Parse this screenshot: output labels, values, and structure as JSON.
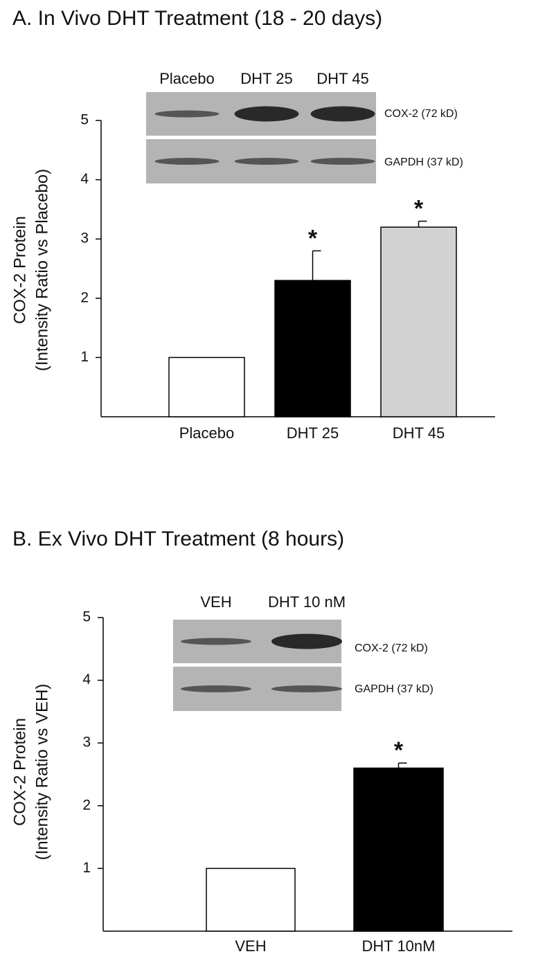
{
  "chart_data": [
    {
      "type": "bar",
      "title": "A. In Vivo DHT Treatment (18 - 20 days)",
      "y_label": [
        "COX-2 Protein",
        "(Intensity Ratio vs Placebo)"
      ],
      "categories": [
        "Placebo",
        "DHT 25",
        "DHT 45"
      ],
      "values": [
        1,
        2.3,
        3.2
      ],
      "errors": [
        null,
        0.5,
        0.1
      ],
      "colors": [
        "#ffffff",
        "#000000",
        "#d3d3d3"
      ],
      "annotations": [
        null,
        "*",
        "*"
      ],
      "ylim": [
        0,
        5
      ],
      "yticks": [
        1,
        2,
        3,
        4,
        5
      ],
      "blot": {
        "lanes": [
          "Placebo",
          "DHT 25",
          "DHT 45"
        ],
        "bands": [
          "COX-2 (72 kD)",
          "GAPDH (37 kD)"
        ]
      }
    },
    {
      "type": "bar",
      "title": "B. Ex Vivo DHT Treatment (8 hours)",
      "y_label": [
        "COX-2 Protein",
        "(Intensity Ratio vs VEH)"
      ],
      "categories": [
        "VEH",
        "DHT 10nM"
      ],
      "values": [
        1,
        2.6
      ],
      "errors": [
        null,
        0.08
      ],
      "colors": [
        "#ffffff",
        "#000000"
      ],
      "annotations": [
        null,
        "*"
      ],
      "ylim": [
        0,
        5
      ],
      "yticks": [
        1,
        2,
        3,
        4,
        5
      ],
      "blot": {
        "lanes": [
          "VEH",
          "DHT 10 nM"
        ],
        "bands": [
          "COX-2 (72 kD)",
          "GAPDH (37 kD)"
        ]
      }
    }
  ]
}
